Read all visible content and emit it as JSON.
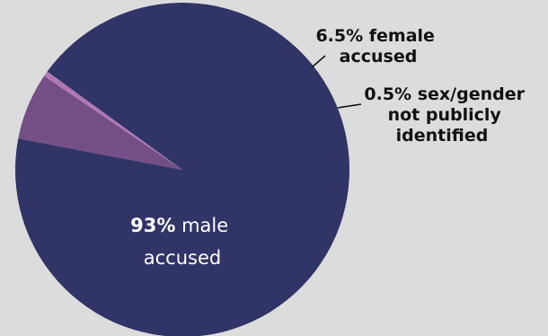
{
  "chart_data": {
    "type": "pie",
    "title": "",
    "slices": [
      {
        "label": "male accused",
        "value": 93,
        "color": "#303466"
      },
      {
        "label": "female accused",
        "value": 6.5,
        "color": "#744f86"
      },
      {
        "label": "sex/gender not publicly identified",
        "value": 0.5,
        "color": "#b278b6"
      }
    ],
    "labels": {
      "male": {
        "pct": "93%",
        "line1": "male",
        "line2": "accused"
      },
      "female": {
        "line1": "6.5% female",
        "line2": "accused"
      },
      "unidentified": {
        "line1": "0.5% sex/gender",
        "line2": "not publicly",
        "line3": "identified"
      }
    },
    "legend": false,
    "start_angle_deg": 144,
    "direction": "counterclockwise"
  }
}
